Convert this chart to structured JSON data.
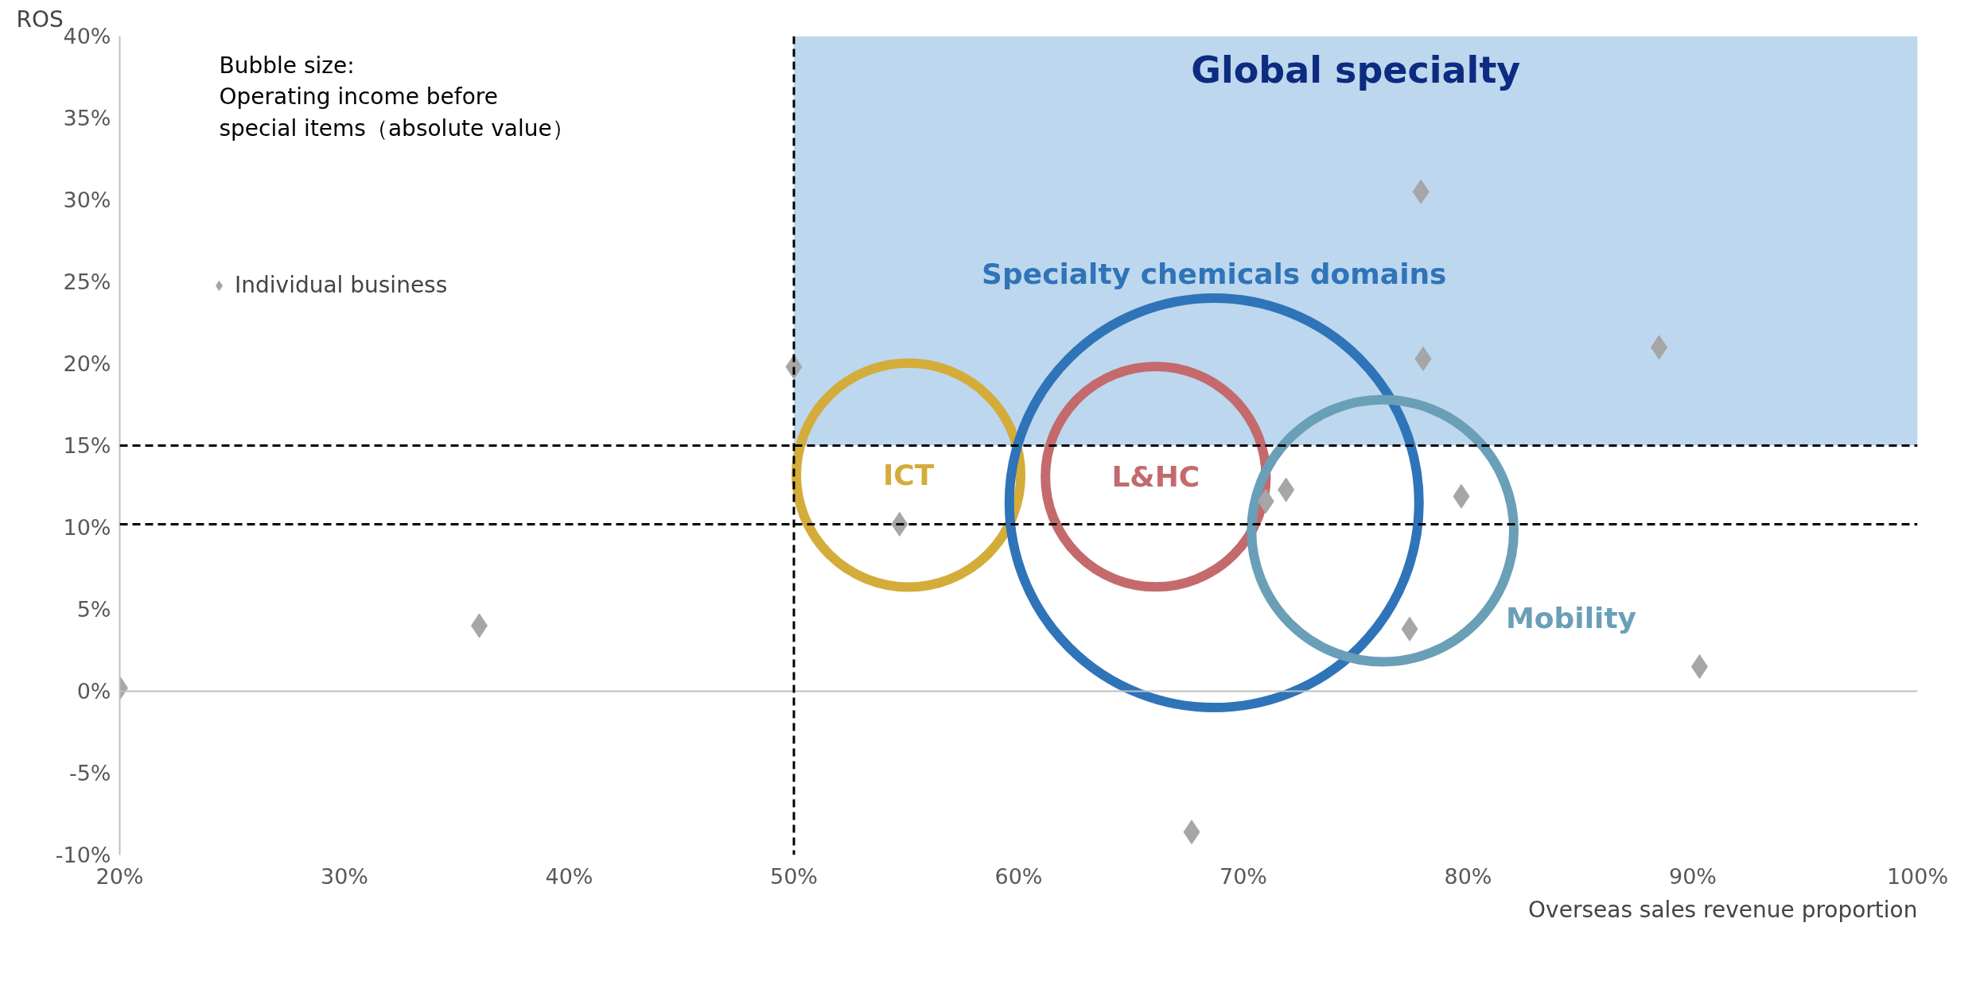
{
  "chart_data": {
    "type": "scatter",
    "xlabel": "Overseas sales revenue proportion",
    "ylabel": "ROS",
    "xlim": [
      20,
      100
    ],
    "ylim": [
      -10,
      40
    ],
    "xticks": [
      {
        "value": 20,
        "label": "20%"
      },
      {
        "value": 30,
        "label": "30%"
      },
      {
        "value": 40,
        "label": "40%"
      },
      {
        "value": 50,
        "label": "50%"
      },
      {
        "value": 60,
        "label": "60%"
      },
      {
        "value": 70,
        "label": "70%"
      },
      {
        "value": 80,
        "label": "80%"
      },
      {
        "value": 90,
        "label": "90%"
      },
      {
        "value": 100,
        "label": "100%"
      }
    ],
    "yticks": [
      {
        "value": -10,
        "label": "-10%"
      },
      {
        "value": -5,
        "label": "-5%"
      },
      {
        "value": 0,
        "label": "0%"
      },
      {
        "value": 5,
        "label": "5%"
      },
      {
        "value": 10,
        "label": "10%"
      },
      {
        "value": 15,
        "label": "15%"
      },
      {
        "value": 20,
        "label": "20%"
      },
      {
        "value": 25,
        "label": "25%"
      },
      {
        "value": 30,
        "label": "30%"
      },
      {
        "value": 35,
        "label": "35%"
      },
      {
        "value": 40,
        "label": "40%"
      }
    ],
    "grid": false,
    "legend": "top left",
    "annotations": [
      "Bubble size:\n Operating income before\n special items（absolute value）"
    ],
    "ref_lines": [
      {
        "axis": "x",
        "value": 50,
        "line_style": "dashed",
        "color": "#000000"
      },
      {
        "axis": "y",
        "value": 15,
        "line_style": "dashed",
        "color": "#000000"
      },
      {
        "axis": "y",
        "value": 10.2,
        "line_style": "dashed",
        "color": "#000000"
      }
    ],
    "bands": [
      {
        "axis": "y",
        "from": 15,
        "to": 40,
        "label": "Global specialty",
        "color": "#bdd7ee"
      }
    ],
    "series": [
      {
        "name": "Individual business",
        "marker": "diamond",
        "color": "#a6a6a6",
        "x": [
          20,
          36,
          50,
          54.7,
          67.7,
          71,
          71.9,
          77.9,
          78,
          77.4,
          79.7,
          88.5,
          90.3
        ],
        "values": [
          0.2,
          4,
          19.8,
          10.2,
          -8.6,
          11.6,
          12.3,
          30.5,
          20.3,
          3.8,
          11.9,
          21,
          1.5
        ]
      },
      {
        "type": "bubble",
        "name": "ICT",
        "color": "#d4ac3a",
        "x": [
          55.1
        ],
        "values": [
          13.2
        ],
        "sizes": [
          0.3
        ]
      },
      {
        "type": "bubble",
        "name": "L&HC",
        "color": "#c46a6d",
        "x": [
          66.1
        ],
        "values": [
          13.1
        ],
        "sizes": [
          0.29
        ]
      },
      {
        "type": "bubble",
        "name": "Specialty chemicals domains",
        "color": "#2f74b8",
        "x": [
          68.7
        ],
        "values": [
          11.5
        ],
        "sizes": [
          1
        ]
      },
      {
        "type": "bubble",
        "name": "Mobility",
        "color": "#6a9fb8",
        "x": [
          76.2
        ],
        "values": [
          9.8
        ],
        "sizes": [
          0.41
        ]
      }
    ]
  }
}
